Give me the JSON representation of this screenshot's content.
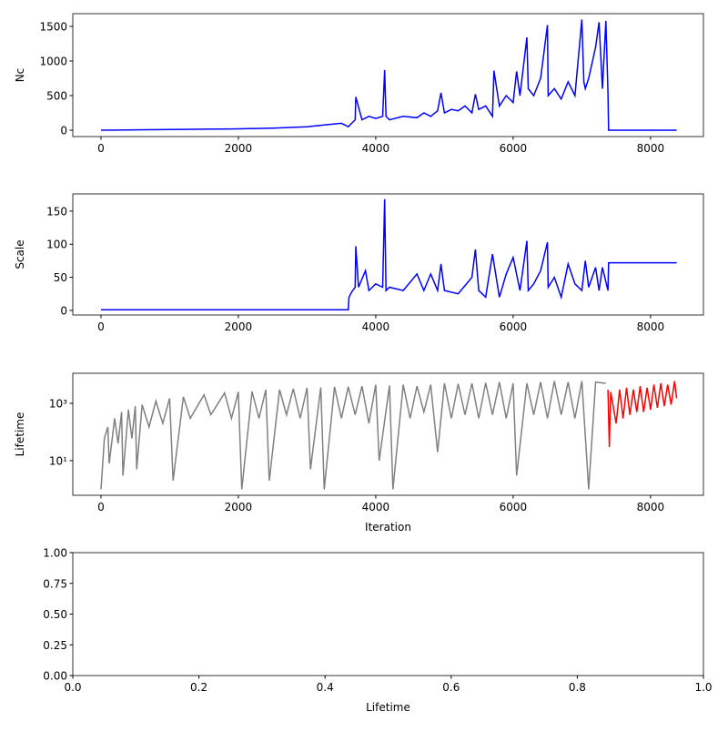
{
  "chart_data": [
    {
      "type": "line",
      "ylabel": "Nc",
      "xlim": [
        -410,
        8770
      ],
      "xticks": [
        0,
        2000,
        4000,
        6000,
        8000
      ],
      "ylim": [
        -92,
        1684
      ],
      "yticks": [
        0,
        500,
        1000,
        1500
      ],
      "series": [
        {
          "color": "#0000ff",
          "x": [
            0,
            500,
            1000,
            1500,
            2000,
            2500,
            3000,
            3300,
            3500,
            3600,
            3700,
            3710,
            3800,
            3900,
            4000,
            4100,
            4130,
            4150,
            4200,
            4400,
            4600,
            4700,
            4800,
            4900,
            4950,
            5000,
            5100,
            5200,
            5300,
            5400,
            5450,
            5500,
            5600,
            5700,
            5720,
            5800,
            5900,
            6000,
            6050,
            6100,
            6200,
            6220,
            6300,
            6400,
            6500,
            6510,
            6600,
            6700,
            6800,
            6900,
            7000,
            7030,
            7050,
            7100,
            7200,
            7250,
            7300,
            7350,
            7380,
            7390,
            8380
          ],
          "values": [
            0,
            5,
            10,
            15,
            20,
            30,
            50,
            80,
            100,
            50,
            150,
            480,
            150,
            200,
            170,
            200,
            870,
            200,
            150,
            200,
            180,
            250,
            200,
            280,
            540,
            250,
            300,
            280,
            350,
            250,
            520,
            300,
            350,
            200,
            860,
            350,
            500,
            400,
            850,
            500,
            1340,
            600,
            500,
            750,
            1520,
            500,
            600,
            450,
            700,
            500,
            1600,
            700,
            600,
            750,
            1200,
            1560,
            600,
            1580,
            550,
            0,
            0
          ]
        }
      ]
    },
    {
      "type": "line",
      "ylabel": "Scale",
      "xlim": [
        -410,
        8770
      ],
      "xticks": [
        0,
        2000,
        4000,
        6000,
        8000
      ],
      "ylim": [
        -7,
        176
      ],
      "yticks": [
        0,
        50,
        100,
        150
      ],
      "series": [
        {
          "color": "#0000ff",
          "x": [
            0,
            3600,
            3610,
            3650,
            3700,
            3710,
            3750,
            3850,
            3900,
            4000,
            4100,
            4130,
            4150,
            4200,
            4400,
            4600,
            4700,
            4800,
            4900,
            4950,
            5000,
            5200,
            5400,
            5450,
            5500,
            5600,
            5700,
            5800,
            5900,
            6000,
            6100,
            6200,
            6220,
            6300,
            6400,
            6500,
            6510,
            6600,
            6700,
            6800,
            6900,
            7000,
            7050,
            7100,
            7200,
            7250,
            7300,
            7380,
            7390,
            8380
          ],
          "values": [
            1,
            1,
            20,
            28,
            35,
            97,
            35,
            60,
            30,
            40,
            35,
            168,
            30,
            35,
            30,
            55,
            30,
            55,
            30,
            70,
            30,
            25,
            50,
            92,
            30,
            20,
            85,
            20,
            55,
            80,
            30,
            105,
            30,
            40,
            60,
            103,
            35,
            50,
            20,
            70,
            40,
            30,
            75,
            35,
            65,
            30,
            65,
            30,
            72,
            72
          ]
        }
      ]
    },
    {
      "type": "line",
      "ylabel": "Lifetime",
      "xlabel": "Iteration",
      "yscale": "log",
      "xlim": [
        -410,
        8770
      ],
      "xticks": [
        0,
        2000,
        4000,
        6000,
        8000
      ],
      "ylim": [
        0.62,
        11200
      ],
      "yticks": [
        {
          "value": 10,
          "label": "10¹"
        },
        {
          "value": 1000,
          "label": "10³"
        }
      ],
      "series": [
        {
          "color": "#808080",
          "x": [
            0,
            50,
            100,
            120,
            200,
            250,
            300,
            320,
            400,
            450,
            500,
            520,
            600,
            700,
            800,
            900,
            1000,
            1050,
            1200,
            1300,
            1500,
            1600,
            1800,
            1900,
            2000,
            2050,
            2200,
            2300,
            2400,
            2450,
            2600,
            2700,
            2800,
            2900,
            3000,
            3050,
            3200,
            3250,
            3400,
            3500,
            3600,
            3700,
            3800,
            3900,
            4000,
            4050,
            4200,
            4250,
            4400,
            4500,
            4600,
            4700,
            4800,
            4900,
            5000,
            5100,
            5200,
            5300,
            5400,
            5500,
            5600,
            5700,
            5800,
            5900,
            6000,
            6050,
            6200,
            6300,
            6400,
            6500,
            6600,
            6700,
            6800,
            6900,
            7000,
            7100,
            7200,
            7350
          ],
          "values": [
            1,
            60,
            150,
            8,
            300,
            40,
            500,
            3,
            600,
            60,
            800,
            5,
            900,
            150,
            1200,
            200,
            1500,
            2,
            1700,
            300,
            2000,
            400,
            2300,
            300,
            2500,
            1,
            2600,
            300,
            3000,
            2,
            3000,
            400,
            3200,
            300,
            3500,
            5,
            3600,
            1,
            3800,
            300,
            3800,
            400,
            4000,
            200,
            4500,
            10,
            4200,
            1,
            4500,
            300,
            4000,
            500,
            4500,
            20,
            5000,
            300,
            4800,
            400,
            5000,
            300,
            5200,
            400,
            5500,
            300,
            5000,
            3,
            5000,
            400,
            5500,
            300,
            6000,
            400,
            5500,
            300,
            6000,
            1,
            5500,
            5000
          ]
        },
        {
          "color": "#ff0000",
          "x": [
            7380,
            7400,
            7420,
            7500,
            7550,
            7600,
            7650,
            7700,
            7750,
            7800,
            7850,
            7900,
            7950,
            8000,
            8050,
            8100,
            8150,
            8200,
            8250,
            8300,
            8350,
            8380
          ],
          "values": [
            3000,
            30,
            2500,
            200,
            3000,
            300,
            3500,
            400,
            3000,
            500,
            4000,
            500,
            3500,
            600,
            4500,
            700,
            5000,
            800,
            4500,
            900,
            6000,
            1500
          ]
        }
      ]
    },
    {
      "type": "line",
      "xlabel": "Lifetime",
      "xlim": [
        0,
        1
      ],
      "xticks": [
        {
          "value": 0,
          "label": "0.0"
        },
        0.2,
        0.4,
        0.6,
        0.8,
        {
          "value": 1,
          "label": "1.0"
        }
      ],
      "ylim": [
        0,
        1
      ],
      "yticks": [
        {
          "value": 0,
          "label": "0.00"
        },
        0.25,
        {
          "value": 0.5,
          "label": "0.50"
        },
        0.75,
        {
          "value": 1,
          "label": "1.00"
        }
      ],
      "series": []
    }
  ]
}
